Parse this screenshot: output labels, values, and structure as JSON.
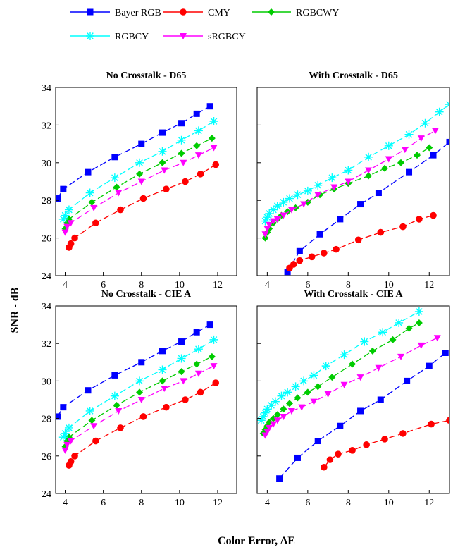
{
  "figure": {
    "ylabel": "SNR - dB",
    "xlabel": "Color Error, ΔE"
  },
  "legend": [
    {
      "name": "Bayer RGB",
      "color": "#0000ff",
      "marker": "square"
    },
    {
      "name": "CMY",
      "color": "#ff0000",
      "marker": "circle"
    },
    {
      "name": "RGBCWY",
      "color": "#00cc00",
      "marker": "diamond"
    },
    {
      "name": "RGBCY",
      "color": "#00ffff",
      "marker": "star"
    },
    {
      "name": "sRGBCY",
      "color": "#ff00ff",
      "marker": "triangle-down"
    }
  ],
  "chart_data": [
    {
      "type": "line",
      "title": "No Crosstalk - D65",
      "xlim": [
        3.5,
        13
      ],
      "ylim": [
        24,
        34
      ],
      "xticks": [
        4,
        6,
        8,
        10,
        12
      ],
      "yticks": [
        24,
        26,
        28,
        30,
        32,
        34
      ],
      "series": [
        {
          "name": "Bayer RGB",
          "x": [
            3.6,
            3.9,
            5.2,
            6.6,
            8.0,
            9.1,
            10.1,
            10.9,
            11.6
          ],
          "y": [
            28.1,
            28.6,
            29.5,
            30.3,
            31.0,
            31.6,
            32.1,
            32.6,
            33.0
          ]
        },
        {
          "name": "CMY",
          "x": [
            4.2,
            4.3,
            4.5,
            5.6,
            6.9,
            8.1,
            9.3,
            10.3,
            11.1,
            11.9
          ],
          "y": [
            25.5,
            25.7,
            26.0,
            26.8,
            27.5,
            28.1,
            28.6,
            29.0,
            29.4,
            29.9
          ]
        },
        {
          "name": "RGBCWY",
          "x": [
            4.0,
            4.1,
            4.2,
            5.4,
            6.7,
            7.9,
            9.1,
            10.1,
            10.9,
            11.7
          ],
          "y": [
            26.5,
            26.8,
            27.0,
            27.9,
            28.7,
            29.4,
            30.0,
            30.5,
            30.9,
            31.3
          ]
        },
        {
          "name": "RGBCY",
          "x": [
            3.9,
            4.0,
            4.2,
            5.3,
            6.6,
            7.9,
            9.1,
            10.1,
            11.0,
            11.8
          ],
          "y": [
            27.0,
            27.2,
            27.5,
            28.4,
            29.2,
            30.0,
            30.6,
            31.2,
            31.7,
            32.2
          ]
        },
        {
          "name": "sRGBCY",
          "x": [
            4.0,
            4.1,
            4.3,
            5.5,
            6.8,
            8.0,
            9.2,
            10.2,
            11.0,
            11.8
          ],
          "y": [
            26.3,
            26.6,
            26.8,
            27.6,
            28.4,
            29.0,
            29.6,
            30.0,
            30.4,
            30.8
          ]
        }
      ]
    },
    {
      "type": "line",
      "title": "With Crosstalk - D65",
      "xlim": [
        3.5,
        13
      ],
      "ylim": [
        24,
        34
      ],
      "xticks": [
        4,
        6,
        8,
        10,
        12
      ],
      "yticks": [
        24,
        26,
        28,
        30,
        32,
        34
      ],
      "series": [
        {
          "name": "Bayer RGB",
          "x": [
            5.0,
            5.6,
            6.6,
            7.6,
            8.6,
            9.5,
            11.0,
            12.2,
            13.0
          ],
          "y": [
            24.2,
            25.3,
            26.2,
            27.0,
            27.8,
            28.4,
            29.5,
            30.4,
            31.1
          ]
        },
        {
          "name": "CMY",
          "x": [
            5.1,
            5.3,
            5.6,
            6.2,
            6.8,
            7.4,
            8.5,
            9.6,
            10.7,
            11.5,
            12.2
          ],
          "y": [
            24.4,
            24.6,
            24.8,
            25.0,
            25.2,
            25.4,
            25.9,
            26.3,
            26.6,
            27.0,
            27.2
          ]
        },
        {
          "name": "RGBCWY",
          "x": [
            3.9,
            4.0,
            4.1,
            4.3,
            4.5,
            4.7,
            5.0,
            5.4,
            6.0,
            6.6,
            7.3,
            8.0,
            9.0,
            9.8,
            10.6,
            11.4,
            12.0
          ],
          "y": [
            26.0,
            26.3,
            26.5,
            26.8,
            27.0,
            27.2,
            27.4,
            27.6,
            27.9,
            28.3,
            28.6,
            28.9,
            29.3,
            29.7,
            30.0,
            30.4,
            30.8
          ]
        },
        {
          "name": "RGBCY",
          "x": [
            3.9,
            4.0,
            4.1,
            4.3,
            4.5,
            4.8,
            5.1,
            5.5,
            6.0,
            6.5,
            7.2,
            8.0,
            9.0,
            10.0,
            11.0,
            11.8,
            12.5,
            13.0
          ],
          "y": [
            26.9,
            27.1,
            27.3,
            27.5,
            27.7,
            27.9,
            28.1,
            28.3,
            28.5,
            28.8,
            29.2,
            29.6,
            30.3,
            30.9,
            31.5,
            32.1,
            32.7,
            33.1
          ]
        },
        {
          "name": "sRGBCY",
          "x": [
            3.9,
            4.0,
            4.1,
            4.3,
            4.5,
            4.8,
            5.2,
            5.8,
            6.5,
            7.3,
            8.0,
            9.0,
            10.0,
            10.8,
            11.6,
            12.3
          ],
          "y": [
            26.2,
            26.5,
            26.7,
            26.9,
            27.0,
            27.2,
            27.5,
            27.8,
            28.3,
            28.7,
            29.0,
            29.6,
            30.2,
            30.7,
            31.3,
            31.7
          ]
        }
      ]
    },
    {
      "type": "line",
      "title": "No Crosstalk - CIE A",
      "xlim": [
        3.5,
        13
      ],
      "ylim": [
        24,
        34
      ],
      "xticks": [
        4,
        6,
        8,
        10,
        12
      ],
      "yticks": [
        24,
        26,
        28,
        30,
        32,
        34
      ],
      "series": [
        {
          "name": "Bayer RGB",
          "x": [
            3.6,
            3.9,
            5.2,
            6.6,
            8.0,
            9.1,
            10.1,
            10.9,
            11.6
          ],
          "y": [
            28.1,
            28.6,
            29.5,
            30.3,
            31.0,
            31.6,
            32.1,
            32.6,
            33.0
          ]
        },
        {
          "name": "CMY",
          "x": [
            4.2,
            4.3,
            4.5,
            5.6,
            6.9,
            8.1,
            9.3,
            10.3,
            11.1,
            11.9
          ],
          "y": [
            25.5,
            25.7,
            26.0,
            26.8,
            27.5,
            28.1,
            28.6,
            29.0,
            29.4,
            29.9
          ]
        },
        {
          "name": "RGBCWY",
          "x": [
            4.0,
            4.1,
            4.2,
            5.4,
            6.7,
            7.9,
            9.1,
            10.1,
            10.9,
            11.7
          ],
          "y": [
            26.5,
            26.8,
            27.0,
            27.9,
            28.7,
            29.4,
            30.0,
            30.5,
            30.9,
            31.3
          ]
        },
        {
          "name": "RGBCY",
          "x": [
            3.9,
            4.0,
            4.2,
            5.3,
            6.6,
            7.9,
            9.1,
            10.1,
            11.0,
            11.8
          ],
          "y": [
            27.0,
            27.2,
            27.5,
            28.4,
            29.2,
            30.0,
            30.6,
            31.2,
            31.7,
            32.2
          ]
        },
        {
          "name": "sRGBCY",
          "x": [
            4.0,
            4.1,
            4.3,
            5.5,
            6.8,
            8.0,
            9.2,
            10.2,
            11.0,
            11.8
          ],
          "y": [
            26.3,
            26.6,
            26.8,
            27.6,
            28.4,
            29.0,
            29.6,
            30.0,
            30.4,
            30.8
          ]
        }
      ]
    },
    {
      "type": "line",
      "title": "With Crosstalk - CIE A",
      "xlim": [
        3.5,
        13
      ],
      "ylim": [
        24,
        34
      ],
      "xticks": [
        4,
        6,
        8,
        10,
        12
      ],
      "yticks": [
        24,
        26,
        28,
        30,
        32,
        34
      ],
      "series": [
        {
          "name": "Bayer RGB",
          "x": [
            4.6,
            5.5,
            6.5,
            7.6,
            8.6,
            9.6,
            10.9,
            12.0,
            12.8
          ],
          "y": [
            24.8,
            25.9,
            26.8,
            27.6,
            28.4,
            29.0,
            30.0,
            30.8,
            31.5
          ]
        },
        {
          "name": "CMY",
          "x": [
            6.8,
            7.1,
            7.5,
            8.2,
            8.9,
            9.8,
            10.7,
            12.1,
            13.0
          ],
          "y": [
            25.4,
            25.8,
            26.1,
            26.3,
            26.6,
            26.9,
            27.2,
            27.7,
            27.9
          ]
        },
        {
          "name": "RGBCWY",
          "x": [
            3.8,
            3.9,
            4.0,
            4.1,
            4.3,
            4.5,
            4.8,
            5.1,
            5.5,
            6.0,
            6.5,
            7.2,
            8.2,
            9.2,
            10.2,
            11.0,
            11.5
          ],
          "y": [
            27.2,
            27.4,
            27.6,
            27.8,
            28.0,
            28.2,
            28.5,
            28.8,
            29.1,
            29.4,
            29.7,
            30.2,
            30.9,
            31.6,
            32.2,
            32.8,
            33.1
          ]
        },
        {
          "name": "RGBCY",
          "x": [
            3.7,
            3.8,
            3.9,
            4.0,
            4.2,
            4.4,
            4.7,
            5.0,
            5.4,
            5.8,
            6.3,
            6.9,
            7.8,
            8.8,
            9.7,
            10.5,
            11.5
          ],
          "y": [
            27.9,
            28.1,
            28.3,
            28.5,
            28.7,
            28.9,
            29.2,
            29.4,
            29.7,
            30.0,
            30.3,
            30.8,
            31.4,
            32.1,
            32.6,
            33.1,
            33.7
          ]
        },
        {
          "name": "sRGBCY",
          "x": [
            3.9,
            4.0,
            4.1,
            4.3,
            4.5,
            4.8,
            5.2,
            5.7,
            6.3,
            7.0,
            7.8,
            8.6,
            9.5,
            10.6,
            11.6,
            12.4
          ],
          "y": [
            27.1,
            27.3,
            27.5,
            27.7,
            27.9,
            28.1,
            28.4,
            28.6,
            28.9,
            29.3,
            29.8,
            30.2,
            30.7,
            31.3,
            31.9,
            32.3
          ]
        }
      ]
    }
  ]
}
